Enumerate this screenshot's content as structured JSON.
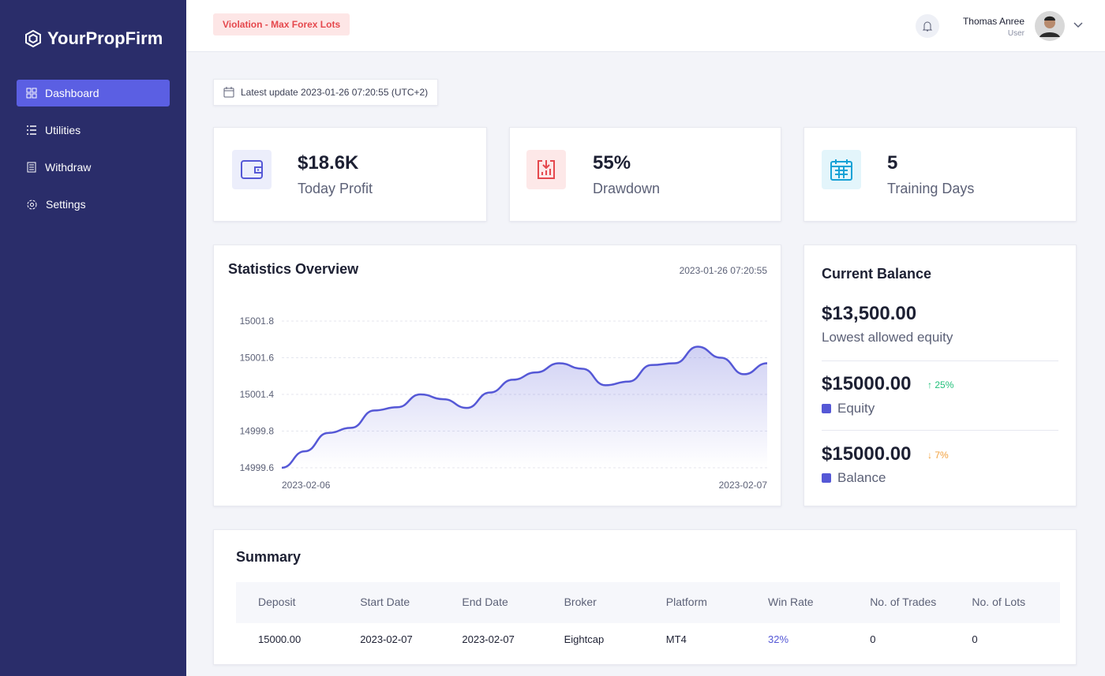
{
  "brand": "YourPropFirm",
  "nav": [
    "Dashboard",
    "Utilities",
    "Withdraw",
    "Settings"
  ],
  "header": {
    "alert": "Violation - Max Forex Lots",
    "user_name": "Thomas Anree",
    "user_role": "User"
  },
  "latest_update": "Latest update 2023-01-26 07:20:55 (UTC+2)",
  "stats": [
    {
      "value": "$18.6K",
      "label": "Today Profit"
    },
    {
      "value": "55%",
      "label": "Drawdown"
    },
    {
      "value": "5",
      "label": "Training Days"
    }
  ],
  "chart_data": {
    "type": "line",
    "title": "Statistics Overview",
    "subtitle": "2023-01-26 07:20:55",
    "categories": [
      "2023-02-06",
      null,
      null,
      null,
      null,
      null,
      null,
      null,
      null,
      null,
      null,
      null,
      null,
      null,
      null,
      null,
      null,
      null,
      null,
      null,
      null,
      "2023-02-07"
    ],
    "series": [
      {
        "color": "#5558d6",
        "values": [
          14999.6,
          14999.69,
          14999.79,
          14999.94,
          15000.7,
          15000.84,
          15001.4,
          15001.19,
          15000.81,
          15001.41,
          15001.48,
          15001.52,
          15001.57,
          15001.54,
          15001.45,
          15001.47,
          15001.56,
          15001.57,
          15001.66,
          15001.6,
          15001.51,
          15001.57
        ]
      }
    ],
    "ylim": [
      14999.6,
      15001.8
    ],
    "yticks": [
      14999.6,
      14999.8,
      15001.4,
      15001.6,
      15001.8
    ],
    "grid": true
  },
  "balance": {
    "title": "Current Balance",
    "lowest_value": "$13,500.00",
    "lowest_label": "Lowest allowed equity",
    "items": [
      {
        "value": "$15000.00",
        "change": "25%",
        "label": "Equity"
      },
      {
        "value": "$15000.00",
        "change": "7%",
        "label": "Balance"
      }
    ]
  },
  "summary": {
    "title": "Summary",
    "columns": [
      "Deposit",
      "Start Date",
      "End Date",
      "Broker",
      "Platform",
      "Win Rate",
      "No. of Trades",
      "No. of Lots"
    ],
    "rows": [
      [
        "15000.00",
        "2023-02-07",
        "2023-02-07",
        "Eightcap",
        "MT4",
        "32%",
        "0",
        "0"
      ]
    ]
  }
}
